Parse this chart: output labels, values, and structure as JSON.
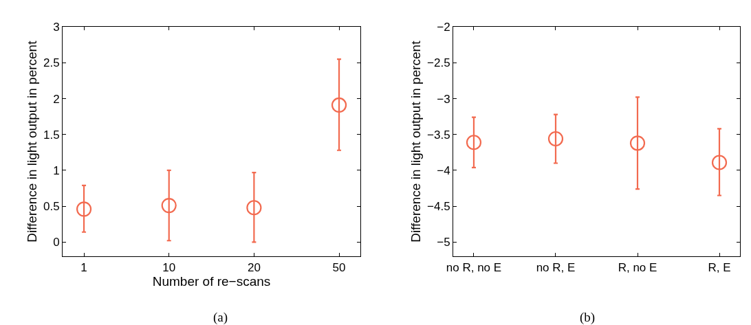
{
  "chart_data": [
    {
      "type": "scatter",
      "xlabel": "Number of re−scans",
      "ylabel": "Difference in light output in percent",
      "categories": [
        "1",
        "10",
        "20",
        "50"
      ],
      "values": [
        0.46,
        0.51,
        0.48,
        1.91
      ],
      "errors": [
        [
          0.14,
          0.79
        ],
        [
          0.02,
          1.0
        ],
        [
          0.0,
          0.97
        ],
        [
          1.28,
          2.55
        ]
      ],
      "color": "#f26a4f",
      "marker": "circle",
      "ylim": [
        -0.2,
        3
      ],
      "yticks": [
        0,
        0.5,
        1,
        1.5,
        2,
        2.5,
        3
      ],
      "annotations": [
        "(a)"
      ]
    },
    {
      "type": "scatter",
      "ylabel": "Difference in light output in percent",
      "categories": [
        "no R, no E",
        "no R, E",
        "R, no E",
        "R, E"
      ],
      "values": [
        -3.61,
        -3.56,
        -3.62,
        -3.89
      ],
      "errors": [
        [
          -3.96,
          -3.26
        ],
        [
          -3.9,
          -3.22
        ],
        [
          -4.26,
          -2.98
        ],
        [
          -4.35,
          -3.42
        ]
      ],
      "color": "#f26a4f",
      "marker": "circle",
      "ylim": [
        -5.2,
        -2
      ],
      "yticks": [
        {
          "value": -5,
          "label": "−5"
        },
        {
          "value": -4.5,
          "label": "−4.5"
        },
        {
          "value": -4,
          "label": "−4"
        },
        {
          "value": -3.5,
          "label": "−3.5"
        },
        {
          "value": -3,
          "label": "−3"
        },
        {
          "value": -2.5,
          "label": "−2.5"
        },
        {
          "value": -2,
          "label": "−2"
        }
      ],
      "annotations": [
        "(b)"
      ]
    }
  ]
}
